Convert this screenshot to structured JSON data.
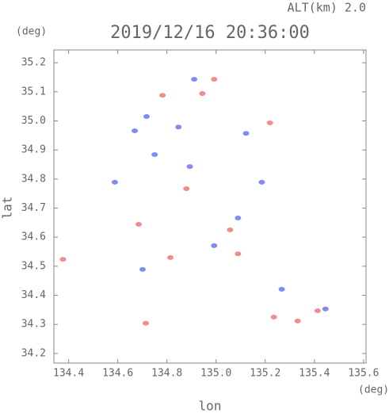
{
  "chart_data": {
    "type": "scatter",
    "title": "2019/12/16 20:36:00",
    "subtitle": "ALT(km) 2.0",
    "x_label": "lon",
    "y_label": "lat",
    "x_unit": "(deg)",
    "y_unit": "(deg)",
    "xlim": [
      134.34,
      135.61
    ],
    "ylim": [
      34.167,
      35.244
    ],
    "xticks": [
      134.4,
      134.6,
      134.8,
      {
        "value": 135.0,
        "label": "135.0"
      },
      135.2,
      135.4,
      135.6
    ],
    "yticks": [
      34.2,
      34.3,
      34.4,
      34.5,
      34.6,
      34.7,
      34.8,
      34.9,
      {
        "value": 35.0,
        "label": "35.0"
      },
      35.1,
      35.2
    ],
    "grid": false,
    "series": [
      {
        "color": "#f07878",
        "x": [
          134.377,
          134.714,
          134.944,
          134.992,
          135.235,
          135.332,
          135.413,
          134.782,
          134.879,
          135.057,
          135.089,
          134.814,
          134.685,
          135.219
        ],
        "y": [
          34.524,
          34.304,
          35.094,
          35.143,
          34.325,
          34.312,
          34.347,
          35.088,
          34.767,
          34.625,
          34.543,
          34.53,
          34.644,
          34.993
        ]
      },
      {
        "color": "#6a78f0",
        "x": [
          134.911,
          134.717,
          134.669,
          134.847,
          134.893,
          135.122,
          135.186,
          134.588,
          135.089,
          134.701,
          135.267,
          135.445,
          134.992,
          134.75
        ],
        "y": [
          35.143,
          35.015,
          34.966,
          34.979,
          34.843,
          34.957,
          34.789,
          34.789,
          34.666,
          34.489,
          34.421,
          34.353,
          34.571,
          34.884
        ]
      }
    ]
  }
}
